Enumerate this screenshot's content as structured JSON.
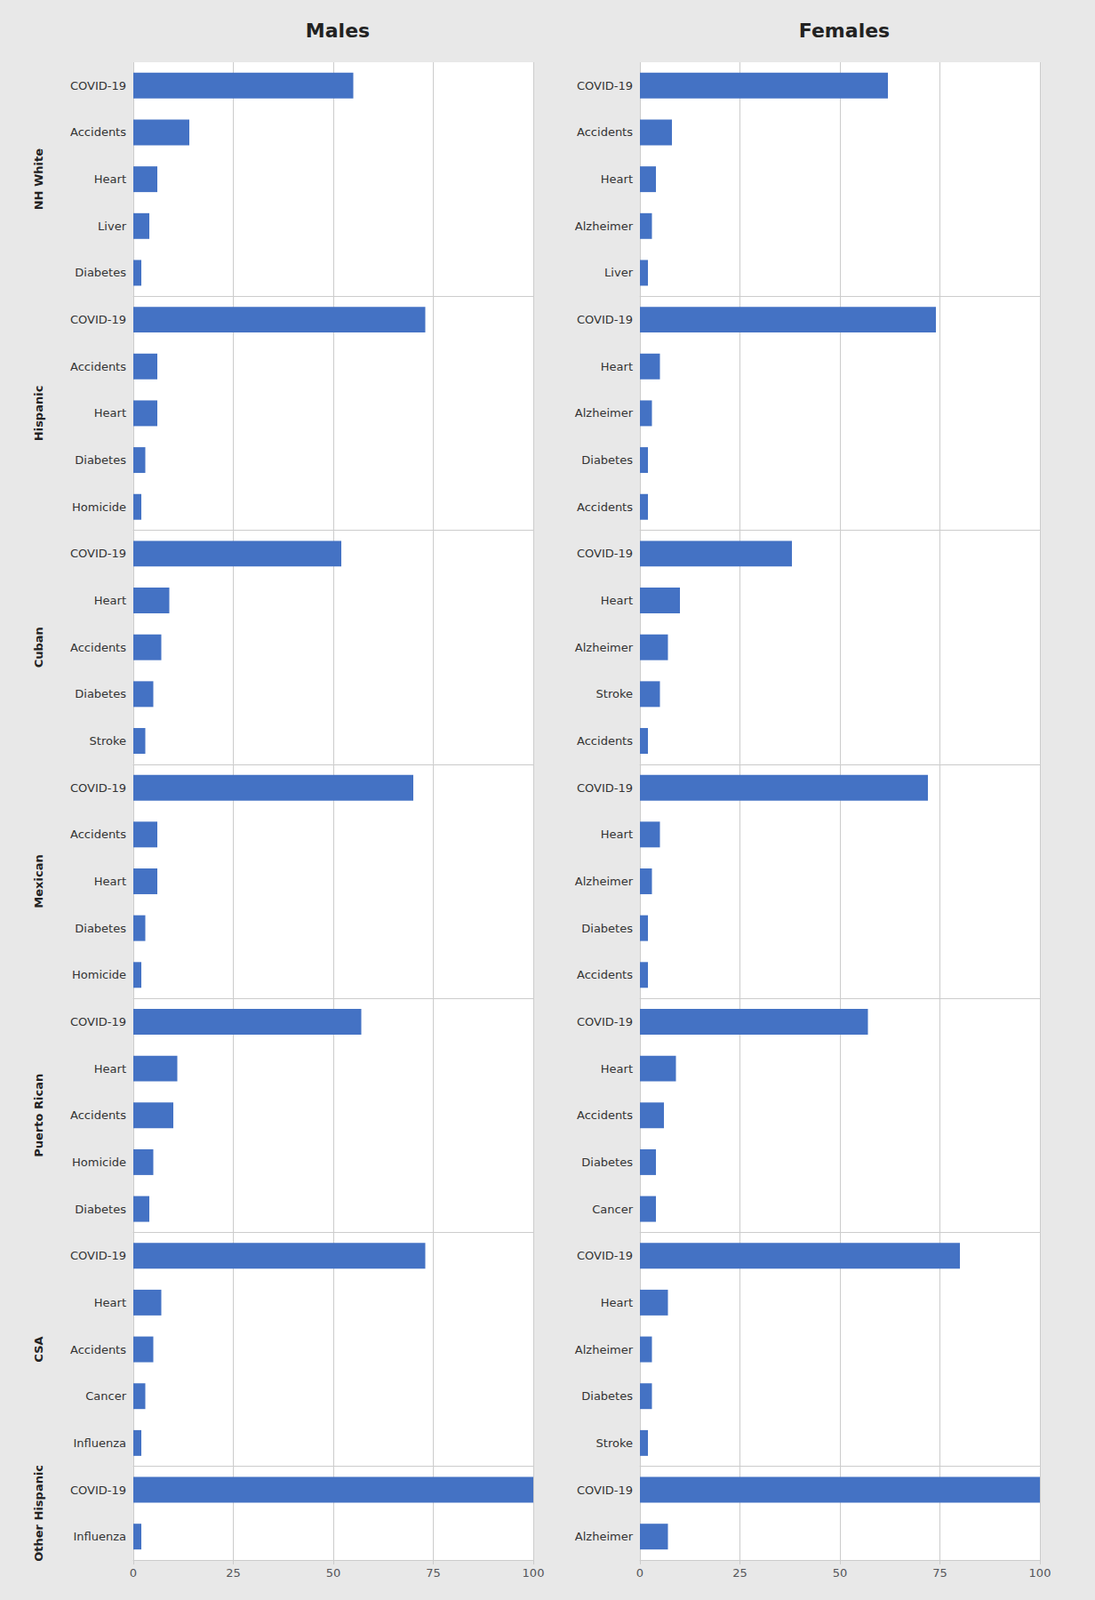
{
  "chart_data": [
    {
      "type": "bar",
      "orientation": "horizontal",
      "title": "Males",
      "ylabel": "NH White",
      "categories": [
        "COVID-19",
        "Accidents",
        "Heart",
        "Liver",
        "Diabetes"
      ],
      "values": [
        55,
        14,
        6,
        4,
        2
      ],
      "color": "#4472C4",
      "xlim": [
        0,
        100
      ],
      "xticks": [
        0,
        25,
        50,
        75,
        100
      ],
      "grid": true,
      "tick_labels": "y"
    },
    {
      "type": "bar",
      "orientation": "horizontal",
      "title": "Females",
      "categories": [
        "COVID-19",
        "Accidents",
        "Heart",
        "Alzheimer",
        "Liver"
      ],
      "values": [
        62,
        8,
        4,
        3,
        2
      ],
      "color": "#4472C4",
      "xlim": [
        0,
        100
      ],
      "xticks": [
        0,
        25,
        50,
        75,
        100
      ],
      "grid": true,
      "tick_labels": "y"
    },
    {
      "type": "bar",
      "orientation": "horizontal",
      "ylabel": "Hispanic",
      "categories": [
        "COVID-19",
        "Accidents",
        "Heart",
        "Diabetes",
        "Homicide"
      ],
      "values": [
        73,
        6,
        6,
        3,
        2
      ],
      "color": "#4472C4",
      "xlim": [
        0,
        100
      ],
      "xticks": [
        0,
        25,
        50,
        75,
        100
      ],
      "grid": true,
      "tick_labels": "y"
    },
    {
      "type": "bar",
      "orientation": "horizontal",
      "categories": [
        "COVID-19",
        "Heart",
        "Alzheimer",
        "Diabetes",
        "Accidents"
      ],
      "values": [
        74,
        5,
        3,
        2,
        2
      ],
      "color": "#4472C4",
      "xlim": [
        0,
        100
      ],
      "xticks": [
        0,
        25,
        50,
        75,
        100
      ],
      "grid": true,
      "tick_labels": "y"
    },
    {
      "type": "bar",
      "orientation": "horizontal",
      "ylabel": "Cuban",
      "categories": [
        "COVID-19",
        "Heart",
        "Accidents",
        "Diabetes",
        "Stroke"
      ],
      "values": [
        52,
        9,
        7,
        5,
        3
      ],
      "color": "#4472C4",
      "xlim": [
        0,
        100
      ],
      "xticks": [
        0,
        25,
        50,
        75,
        100
      ],
      "grid": true,
      "tick_labels": "y"
    },
    {
      "type": "bar",
      "orientation": "horizontal",
      "categories": [
        "COVID-19",
        "Heart",
        "Alzheimer",
        "Stroke",
        "Accidents"
      ],
      "values": [
        38,
        10,
        7,
        5,
        2
      ],
      "color": "#4472C4",
      "xlim": [
        0,
        100
      ],
      "xticks": [
        0,
        25,
        50,
        75,
        100
      ],
      "grid": true,
      "tick_labels": "y"
    },
    {
      "type": "bar",
      "orientation": "horizontal",
      "ylabel": "Mexican",
      "categories": [
        "COVID-19",
        "Accidents",
        "Heart",
        "Diabetes",
        "Homicide"
      ],
      "values": [
        70,
        6,
        6,
        3,
        2
      ],
      "color": "#4472C4",
      "xlim": [
        0,
        100
      ],
      "xticks": [
        0,
        25,
        50,
        75,
        100
      ],
      "grid": true,
      "tick_labels": "y"
    },
    {
      "type": "bar",
      "orientation": "horizontal",
      "categories": [
        "COVID-19",
        "Heart",
        "Alzheimer",
        "Diabetes",
        "Accidents"
      ],
      "values": [
        72,
        5,
        3,
        2,
        2
      ],
      "color": "#4472C4",
      "xlim": [
        0,
        100
      ],
      "xticks": [
        0,
        25,
        50,
        75,
        100
      ],
      "grid": true,
      "tick_labels": "y"
    },
    {
      "type": "bar",
      "orientation": "horizontal",
      "ylabel": "Puerto Rican",
      "categories": [
        "COVID-19",
        "Heart",
        "Accidents",
        "Homicide",
        "Diabetes"
      ],
      "values": [
        57,
        11,
        10,
        5,
        4
      ],
      "color": "#4472C4",
      "xlim": [
        0,
        100
      ],
      "xticks": [
        0,
        25,
        50,
        75,
        100
      ],
      "grid": true,
      "tick_labels": "y"
    },
    {
      "type": "bar",
      "orientation": "horizontal",
      "categories": [
        "COVID-19",
        "Heart",
        "Accidents",
        "Diabetes",
        "Cancer"
      ],
      "values": [
        57,
        9,
        6,
        4,
        4
      ],
      "color": "#4472C4",
      "xlim": [
        0,
        100
      ],
      "xticks": [
        0,
        25,
        50,
        75,
        100
      ],
      "grid": true,
      "tick_labels": "y"
    },
    {
      "type": "bar",
      "orientation": "horizontal",
      "ylabel": "CSA",
      "categories": [
        "COVID-19",
        "Heart",
        "Accidents",
        "Cancer",
        "Influenza"
      ],
      "values": [
        73,
        7,
        5,
        3,
        2
      ],
      "color": "#4472C4",
      "xlim": [
        0,
        100
      ],
      "xticks": [
        0,
        25,
        50,
        75,
        100
      ],
      "grid": true,
      "tick_labels": "y"
    },
    {
      "type": "bar",
      "orientation": "horizontal",
      "categories": [
        "COVID-19",
        "Heart",
        "Alzheimer",
        "Diabetes",
        "Stroke"
      ],
      "values": [
        80,
        7,
        3,
        3,
        2
      ],
      "color": "#4472C4",
      "xlim": [
        0,
        100
      ],
      "xticks": [
        0,
        25,
        50,
        75,
        100
      ],
      "grid": true,
      "tick_labels": "y"
    },
    {
      "type": "bar",
      "orientation": "horizontal",
      "ylabel": "Other Hispanic",
      "categories": [
        "COVID-19",
        "Influenza"
      ],
      "values": [
        100,
        2
      ],
      "color": "#4472C4",
      "xlim": [
        0,
        100
      ],
      "xticks": [
        0,
        25,
        50,
        75,
        100
      ],
      "grid": true
    },
    {
      "type": "bar",
      "orientation": "horizontal",
      "categories": [
        "COVID-19",
        "Alzheimer"
      ],
      "values": [
        100,
        7
      ],
      "color": "#4472C4",
      "xlim": [
        0,
        100
      ],
      "xticks": [
        0,
        25,
        50,
        75,
        100
      ],
      "grid": true
    }
  ]
}
